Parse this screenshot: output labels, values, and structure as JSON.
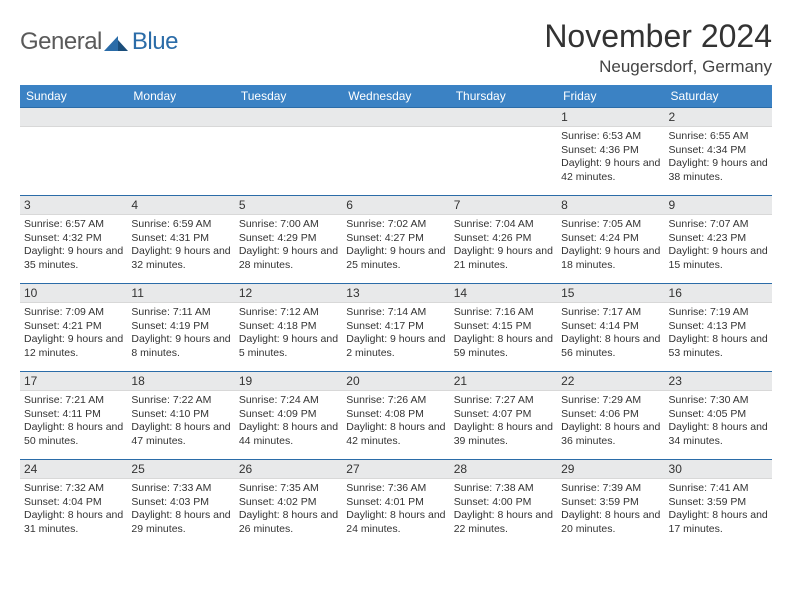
{
  "logo": {
    "text1": "General",
    "text2": "Blue"
  },
  "title": "November 2024",
  "location": "Neugersdorf, Germany",
  "weekday_header": [
    "Sunday",
    "Monday",
    "Tuesday",
    "Wednesday",
    "Thursday",
    "Friday",
    "Saturday"
  ],
  "colors": {
    "header_bg": "#3b82c4",
    "row_border": "#2b6ca8",
    "daynum_bg": "#e8e9ea",
    "text": "#333333"
  },
  "layout": {
    "cols": 7,
    "rows": 5,
    "first_weekday_index": 5,
    "days_in_month": 30
  },
  "days": {
    "1": {
      "sunrise": "6:53 AM",
      "sunset": "4:36 PM",
      "daylight": "9 hours and 42 minutes."
    },
    "2": {
      "sunrise": "6:55 AM",
      "sunset": "4:34 PM",
      "daylight": "9 hours and 38 minutes."
    },
    "3": {
      "sunrise": "6:57 AM",
      "sunset": "4:32 PM",
      "daylight": "9 hours and 35 minutes."
    },
    "4": {
      "sunrise": "6:59 AM",
      "sunset": "4:31 PM",
      "daylight": "9 hours and 32 minutes."
    },
    "5": {
      "sunrise": "7:00 AM",
      "sunset": "4:29 PM",
      "daylight": "9 hours and 28 minutes."
    },
    "6": {
      "sunrise": "7:02 AM",
      "sunset": "4:27 PM",
      "daylight": "9 hours and 25 minutes."
    },
    "7": {
      "sunrise": "7:04 AM",
      "sunset": "4:26 PM",
      "daylight": "9 hours and 21 minutes."
    },
    "8": {
      "sunrise": "7:05 AM",
      "sunset": "4:24 PM",
      "daylight": "9 hours and 18 minutes."
    },
    "9": {
      "sunrise": "7:07 AM",
      "sunset": "4:23 PM",
      "daylight": "9 hours and 15 minutes."
    },
    "10": {
      "sunrise": "7:09 AM",
      "sunset": "4:21 PM",
      "daylight": "9 hours and 12 minutes."
    },
    "11": {
      "sunrise": "7:11 AM",
      "sunset": "4:19 PM",
      "daylight": "9 hours and 8 minutes."
    },
    "12": {
      "sunrise": "7:12 AM",
      "sunset": "4:18 PM",
      "daylight": "9 hours and 5 minutes."
    },
    "13": {
      "sunrise": "7:14 AM",
      "sunset": "4:17 PM",
      "daylight": "9 hours and 2 minutes."
    },
    "14": {
      "sunrise": "7:16 AM",
      "sunset": "4:15 PM",
      "daylight": "8 hours and 59 minutes."
    },
    "15": {
      "sunrise": "7:17 AM",
      "sunset": "4:14 PM",
      "daylight": "8 hours and 56 minutes."
    },
    "16": {
      "sunrise": "7:19 AM",
      "sunset": "4:13 PM",
      "daylight": "8 hours and 53 minutes."
    },
    "17": {
      "sunrise": "7:21 AM",
      "sunset": "4:11 PM",
      "daylight": "8 hours and 50 minutes."
    },
    "18": {
      "sunrise": "7:22 AM",
      "sunset": "4:10 PM",
      "daylight": "8 hours and 47 minutes."
    },
    "19": {
      "sunrise": "7:24 AM",
      "sunset": "4:09 PM",
      "daylight": "8 hours and 44 minutes."
    },
    "20": {
      "sunrise": "7:26 AM",
      "sunset": "4:08 PM",
      "daylight": "8 hours and 42 minutes."
    },
    "21": {
      "sunrise": "7:27 AM",
      "sunset": "4:07 PM",
      "daylight": "8 hours and 39 minutes."
    },
    "22": {
      "sunrise": "7:29 AM",
      "sunset": "4:06 PM",
      "daylight": "8 hours and 36 minutes."
    },
    "23": {
      "sunrise": "7:30 AM",
      "sunset": "4:05 PM",
      "daylight": "8 hours and 34 minutes."
    },
    "24": {
      "sunrise": "7:32 AM",
      "sunset": "4:04 PM",
      "daylight": "8 hours and 31 minutes."
    },
    "25": {
      "sunrise": "7:33 AM",
      "sunset": "4:03 PM",
      "daylight": "8 hours and 29 minutes."
    },
    "26": {
      "sunrise": "7:35 AM",
      "sunset": "4:02 PM",
      "daylight": "8 hours and 26 minutes."
    },
    "27": {
      "sunrise": "7:36 AM",
      "sunset": "4:01 PM",
      "daylight": "8 hours and 24 minutes."
    },
    "28": {
      "sunrise": "7:38 AM",
      "sunset": "4:00 PM",
      "daylight": "8 hours and 22 minutes."
    },
    "29": {
      "sunrise": "7:39 AM",
      "sunset": "3:59 PM",
      "daylight": "8 hours and 20 minutes."
    },
    "30": {
      "sunrise": "7:41 AM",
      "sunset": "3:59 PM",
      "daylight": "8 hours and 17 minutes."
    }
  },
  "labels": {
    "sunrise": "Sunrise: ",
    "sunset": "Sunset: ",
    "daylight": "Daylight: "
  }
}
